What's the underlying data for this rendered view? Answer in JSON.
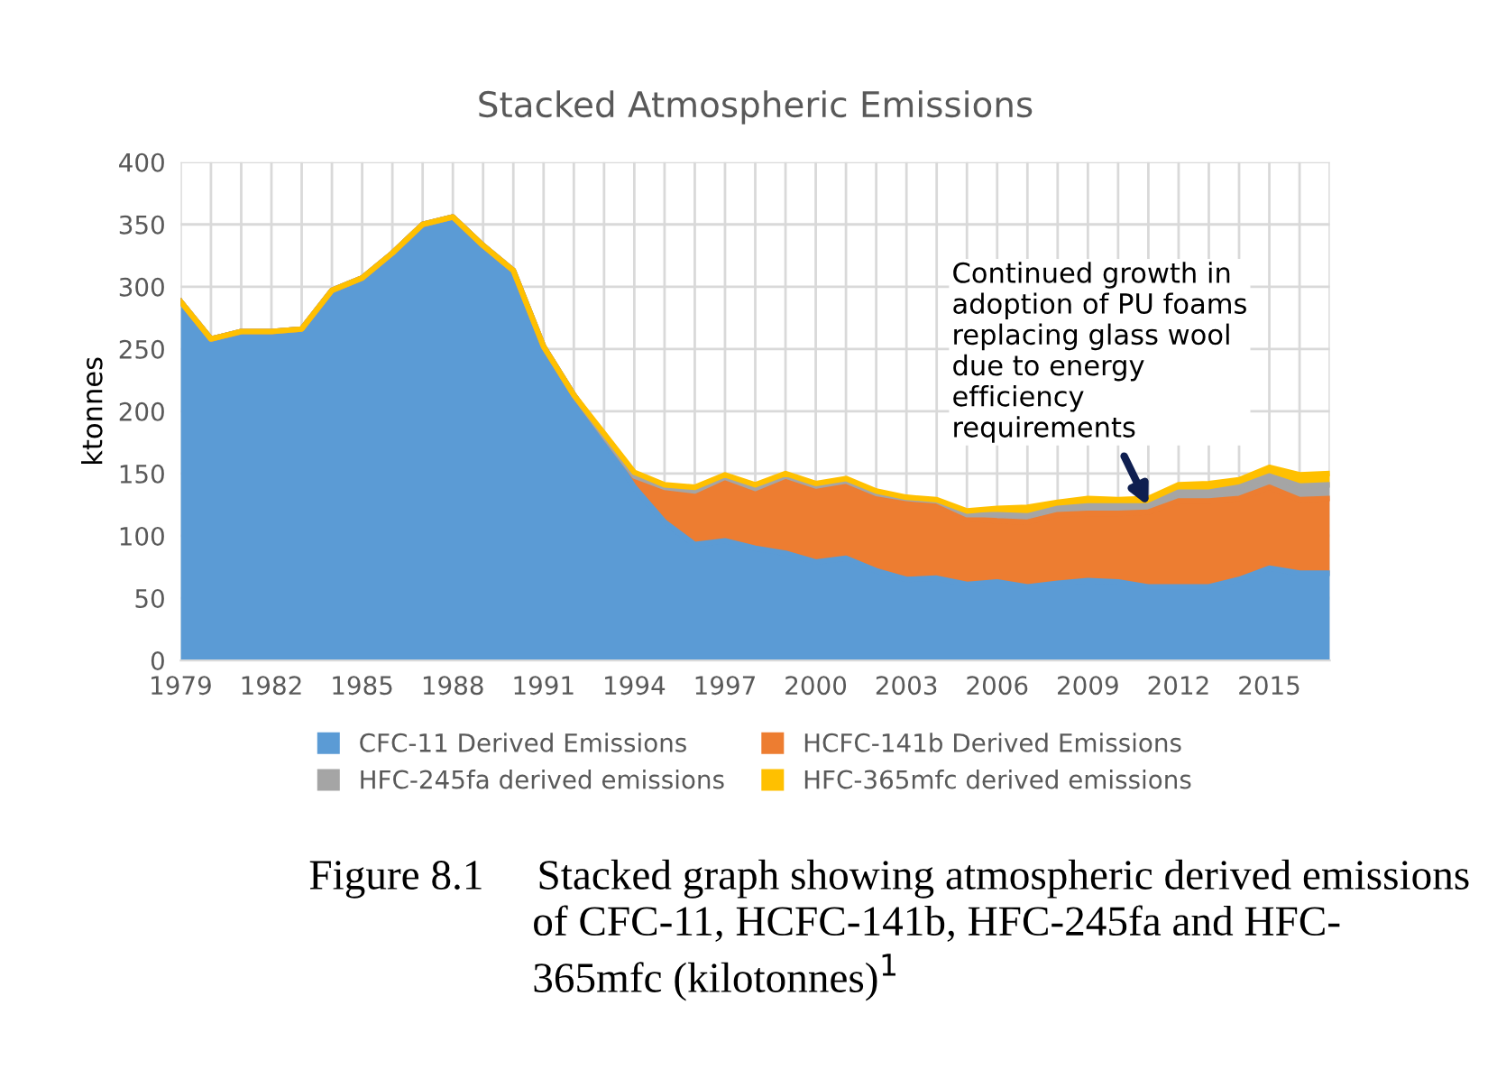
{
  "chart_data": {
    "type": "area",
    "stacked": true,
    "title": "Stacked Atmospheric Emissions",
    "ylabel": "ktonnes",
    "x": [
      1979,
      1980,
      1981,
      1982,
      1983,
      1984,
      1985,
      1986,
      1987,
      1988,
      1989,
      1990,
      1991,
      1992,
      1993,
      1994,
      1995,
      1996,
      1997,
      1998,
      1999,
      2000,
      2001,
      2002,
      2003,
      2004,
      2005,
      2006,
      2007,
      2008,
      2009,
      2010,
      2011,
      2012,
      2013,
      2014,
      2015,
      2016,
      2017
    ],
    "series": [
      {
        "name": "CFC-11 Derived Emissions",
        "color": "#5b9bd5",
        "values": [
          288,
          258,
          264,
          264,
          266,
          297,
          307,
          327,
          350,
          356,
          333,
          313,
          252,
          213,
          176,
          139,
          111,
          93,
          96,
          90,
          86,
          79,
          82,
          72,
          65,
          66,
          61,
          63,
          59,
          62,
          64,
          63,
          59,
          59,
          59,
          65,
          74,
          70,
          70
        ]
      },
      {
        "name": "HCFC-141b Derived Emissions",
        "color": "#ed7d31",
        "values": [
          0,
          0,
          0,
          0,
          0,
          0,
          0,
          0,
          0,
          0,
          0,
          0,
          0,
          0,
          4,
          9,
          28,
          43,
          51,
          48,
          62,
          61,
          62,
          62,
          64,
          61,
          53,
          49,
          52,
          55,
          54,
          55,
          60,
          69,
          69,
          65,
          65,
          59,
          60
        ]
      },
      {
        "name": "HFC-245fa derived emissions",
        "color": "#a5a5a5",
        "values": [
          0,
          0,
          0,
          0,
          0,
          0,
          0,
          0,
          0,
          0,
          0,
          0,
          0,
          0,
          0,
          0,
          0,
          0,
          0,
          0,
          0,
          0,
          0,
          0,
          1,
          1,
          3,
          5,
          5,
          5,
          6,
          6,
          5,
          7,
          7,
          9,
          9,
          11,
          11
        ]
      },
      {
        "name": "HFC-365mfc derived emissions",
        "color": "#ffc000",
        "values": [
          0,
          0,
          0,
          0,
          0,
          0,
          0,
          0,
          0,
          0,
          0,
          0,
          0,
          0,
          2,
          3,
          2,
          3,
          2,
          3,
          2,
          2,
          2,
          2,
          1,
          1,
          3,
          5,
          7,
          5,
          6,
          5,
          6,
          6,
          7,
          6,
          7,
          9,
          9
        ]
      }
    ],
    "xlim": [
      1979,
      2017
    ],
    "xticks": [
      1979,
      {
        "value": 1980,
        "label": null
      },
      {
        "value": 1981,
        "label": null
      },
      1982,
      {
        "value": 1983,
        "label": null
      },
      {
        "value": 1984,
        "label": null
      },
      1985,
      {
        "value": 1986,
        "label": null
      },
      {
        "value": 1987,
        "label": null
      },
      1988,
      {
        "value": 1989,
        "label": null
      },
      {
        "value": 1990,
        "label": null
      },
      1991,
      {
        "value": 1992,
        "label": null
      },
      {
        "value": 1993,
        "label": null
      },
      1994,
      {
        "value": 1995,
        "label": null
      },
      {
        "value": 1996,
        "label": null
      },
      1997,
      {
        "value": 1998,
        "label": null
      },
      {
        "value": 1999,
        "label": null
      },
      2000,
      {
        "value": 2001,
        "label": null
      },
      {
        "value": 2002,
        "label": null
      },
      2003,
      {
        "value": 2004,
        "label": null
      },
      {
        "value": 2005,
        "label": null
      },
      2006,
      {
        "value": 2007,
        "label": null
      },
      {
        "value": 2008,
        "label": null
      },
      2009,
      {
        "value": 2010,
        "label": null
      },
      {
        "value": 2011,
        "label": null
      },
      2012,
      {
        "value": 2013,
        "label": null
      },
      {
        "value": 2014,
        "label": null
      },
      2015,
      {
        "value": 2016,
        "label": null
      },
      {
        "value": 2017,
        "label": null
      }
    ],
    "ylim": [
      0,
      400
    ],
    "yticks": [
      0,
      50,
      100,
      150,
      200,
      250,
      300,
      350,
      400
    ],
    "grid": true,
    "legend": "bottom",
    "annotations": [
      {
        "text": "Continued growth in\nadoption of PU foams\nreplacing glass wool\ndue to energy\nefficiency\nrequirements",
        "x": 2011,
        "y": 124
      },
      "Figure 8.1     Stacked graph showing atmospheric derived emissions\n                     of CFC-11, HCFC-141b, HFC-245fa and HFC-\n                     365mfc (kilotonnes)$^{1}$"
    ]
  }
}
